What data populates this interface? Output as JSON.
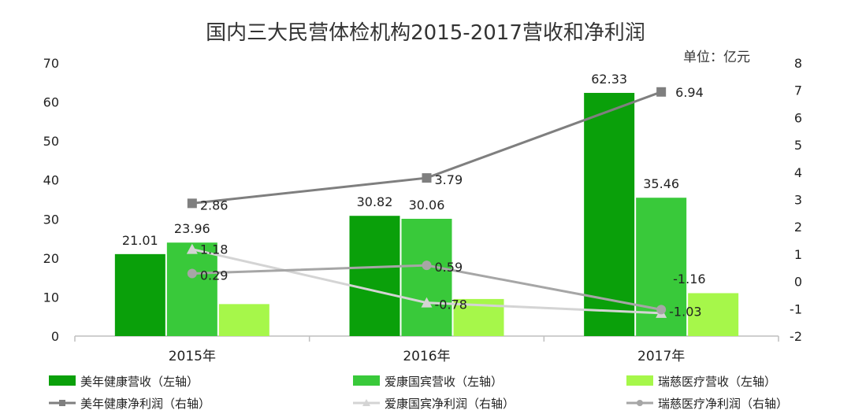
{
  "colors": {
    "series1": "#0aa00a",
    "series2": "#39c93a",
    "series3": "#a6f74a",
    "line1": "#7f7f7f",
    "line2": "#d4d4d4",
    "line3": "#a6a6a6",
    "axis": "#bfbfbf"
  },
  "chart_data": {
    "type": "bar",
    "title": "国内三大民营体检机构2015-2017营收和净利润",
    "unit_label": "单位：亿元",
    "categories": [
      "2015年",
      "2016年",
      "2017年"
    ],
    "left_axis": {
      "min": 0,
      "max": 70,
      "ticks": [
        "0",
        "10",
        "20",
        "30",
        "40",
        "50",
        "60",
        "70"
      ]
    },
    "right_axis": {
      "min": -2,
      "max": 8,
      "ticks": [
        "-2",
        "-1",
        "0",
        "1",
        "2",
        "3",
        "4",
        "5",
        "6",
        "7",
        "8"
      ]
    },
    "bar_series": [
      {
        "name": "美年健康营收（左轴）",
        "values": [
          21.01,
          30.82,
          62.33
        ],
        "labels": [
          "21.01",
          "30.82",
          "62.33"
        ],
        "show_labels": [
          true,
          true,
          true
        ]
      },
      {
        "name": "爱康国宾营收（左轴）",
        "values": [
          23.96,
          30.06,
          35.46
        ],
        "labels": [
          "23.96",
          "30.06",
          "35.46"
        ],
        "show_labels": [
          true,
          true,
          true
        ]
      },
      {
        "name": "瑞慈医疗营收（左轴）",
        "values": [
          8.2,
          9.5,
          11.0
        ],
        "labels": [
          "",
          "",
          ""
        ],
        "show_labels": [
          false,
          false,
          false
        ]
      }
    ],
    "line_series": [
      {
        "name": "美年健康净利润（右轴）",
        "marker": "square",
        "values": [
          2.86,
          3.79,
          6.94
        ],
        "labels": [
          "2.86",
          "3.79",
          "6.94"
        ]
      },
      {
        "name": "爱康国宾净利润（右轴）",
        "marker": "triangle",
        "values": [
          1.18,
          -0.78,
          -1.16
        ],
        "labels": [
          "1.18",
          "-0.78",
          "-1.16"
        ]
      },
      {
        "name": "瑞慈医疗净利润（右轴）",
        "marker": "circle",
        "values": [
          0.29,
          0.59,
          -1.03
        ],
        "labels": [
          "0.29",
          "0.59",
          "-1.03"
        ]
      }
    ],
    "legend_position": "bottom",
    "grid": false
  }
}
